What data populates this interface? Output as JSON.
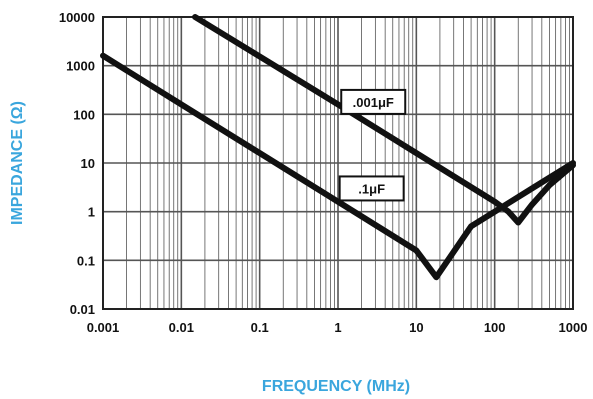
{
  "chart_data": {
    "type": "line",
    "xscale": "log",
    "yscale": "log",
    "xlim": [
      0.001,
      1000
    ],
    "ylim": [
      0.01,
      10000
    ],
    "grid": true,
    "xlabel": "FREQUENCY (MHz)",
    "ylabel": "IMPEDANCE (Ω)",
    "x_tick_labels": [
      "0.001",
      "0.01",
      "0.1",
      "1",
      "10",
      "100",
      "1000"
    ],
    "y_tick_labels": [
      "0.01",
      "0.1",
      "1",
      "10",
      "100",
      "1000",
      "10000"
    ],
    "series": [
      {
        "name": ".001μF",
        "x": [
          0.015,
          1,
          10,
          100,
          150,
          200,
          300,
          500,
          1000
        ],
        "y": [
          10000,
          160,
          16,
          1.6,
          1.0,
          0.6,
          1.4,
          3.5,
          9
        ]
      },
      {
        "name": ".1μF",
        "x": [
          0.001,
          0.01,
          0.1,
          1,
          10,
          18,
          50,
          100,
          300,
          1000
        ],
        "y": [
          1600,
          160,
          16,
          1.6,
          0.16,
          0.045,
          0.5,
          1.0,
          3.0,
          10
        ]
      }
    ],
    "annotations": [
      {
        "text": ".001μF",
        "x": 1.1,
        "y": 180
      },
      {
        "text": ".1μF",
        "x": 1.05,
        "y": 3.0
      }
    ],
    "colors": {
      "axis_title": "#3aa6dd",
      "line": "#111111",
      "grid": "#555555"
    }
  }
}
